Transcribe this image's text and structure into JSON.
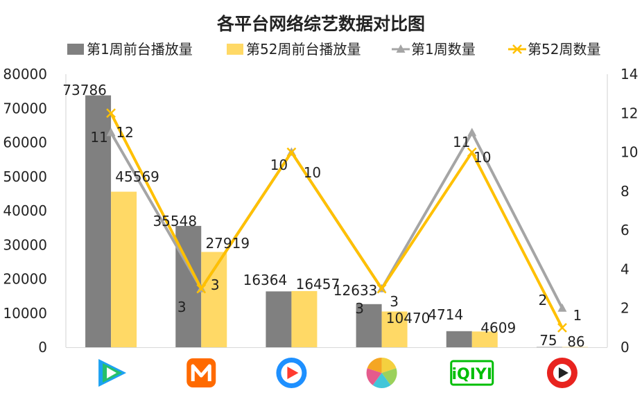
{
  "chart_data": {
    "type": "bar",
    "title": "各平台网络综艺数据对比图",
    "categories": [
      "腾讯视频",
      "芒果TV",
      "优酷",
      "搜狐视频",
      "爱奇艺",
      "PP视频"
    ],
    "series": [
      {
        "name": "第1周前台播放量",
        "kind": "bar",
        "axis": "left",
        "color": "#808080",
        "values": [
          73786,
          35548,
          16364,
          12633,
          4714,
          75
        ]
      },
      {
        "name": "第52周前台播放量",
        "kind": "bar",
        "axis": "left",
        "color": "#FFD966",
        "values": [
          45569,
          27919,
          16457,
          10470,
          4609,
          86
        ]
      },
      {
        "name": "第1周数量",
        "kind": "line",
        "marker": "triangle",
        "axis": "right",
        "color": "#A5A5A5",
        "values": [
          11,
          3,
          10,
          3,
          11,
          2
        ]
      },
      {
        "name": "第52周数量",
        "kind": "line",
        "marker": "x",
        "axis": "right",
        "color": "#FFC000",
        "values": [
          12,
          3,
          10,
          3,
          10,
          1
        ]
      }
    ],
    "y_left": {
      "min": 0,
      "max": 80000,
      "step": 10000,
      "tick_labels": [
        "0",
        "10000",
        "20000",
        "30000",
        "40000",
        "50000",
        "60000",
        "70000",
        "80000"
      ]
    },
    "y_right": {
      "min": 0,
      "max": 14,
      "step": 2,
      "tick_labels": [
        "0",
        "2",
        "4",
        "6",
        "8",
        "10",
        "12",
        "14"
      ]
    },
    "legend_position": "top",
    "grid": false,
    "category_icons": [
      "tencent-video-logo",
      "mango-tv-logo",
      "youku-logo",
      "sohu-video-logo",
      "iqiyi-logo",
      "pptv-logo"
    ],
    "icon_text": {
      "iqiyi": "iQIYI"
    }
  }
}
